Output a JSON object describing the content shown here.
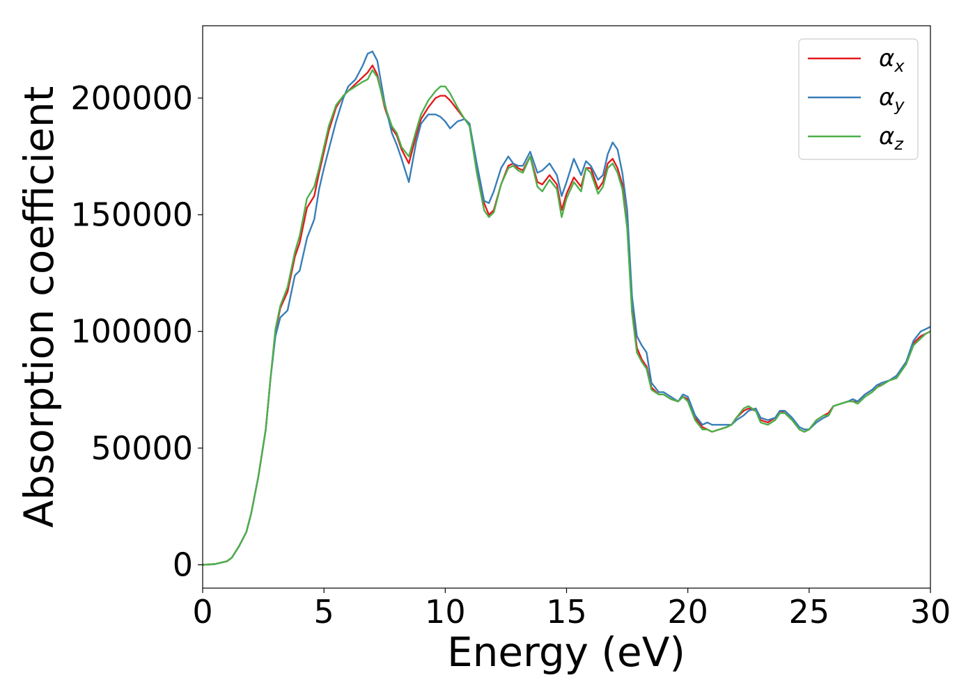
{
  "chart_data": {
    "type": "line",
    "title": "",
    "xlabel": "Energy (eV)",
    "ylabel": "Absorption coefficient",
    "xlim": [
      0,
      30
    ],
    "ylim": [
      -10000,
      231000
    ],
    "xticks": [
      0,
      5,
      10,
      15,
      20,
      25,
      30
    ],
    "yticks": [
      0,
      50000,
      100000,
      150000,
      200000
    ],
    "grid": false,
    "legend_position": "top-right",
    "x": [
      0,
      0.5,
      1,
      1.2,
      1.5,
      1.8,
      2,
      2.3,
      2.6,
      2.8,
      3,
      3.2,
      3.5,
      3.8,
      4,
      4.3,
      4.6,
      4.8,
      5,
      5.2,
      5.5,
      5.8,
      6,
      6.3,
      6.6,
      6.8,
      7,
      7.2,
      7.5,
      7.8,
      8,
      8.2,
      8.5,
      8.8,
      9,
      9.3,
      9.6,
      9.8,
      10,
      10.2,
      10.5,
      10.8,
      11,
      11.3,
      11.6,
      11.8,
      12,
      12.3,
      12.6,
      12.8,
      13,
      13.2,
      13.5,
      13.8,
      14,
      14.3,
      14.6,
      14.8,
      15,
      15.3,
      15.6,
      15.8,
      16,
      16.3,
      16.5,
      16.7,
      16.9,
      17.1,
      17.3,
      17.5,
      17.7,
      17.9,
      18.1,
      18.3,
      18.5,
      18.8,
      19,
      19.3,
      19.6,
      19.8,
      20,
      20.3,
      20.6,
      20.8,
      21,
      21.3,
      21.6,
      21.8,
      22,
      22.3,
      22.5,
      22.8,
      23,
      23.3,
      23.6,
      23.8,
      24,
      24.3,
      24.6,
      24.8,
      25,
      25.3,
      25.6,
      25.8,
      26,
      26.3,
      26.6,
      26.8,
      27,
      27.3,
      27.6,
      27.8,
      28,
      28.3,
      28.6,
      28.8,
      29,
      29.3,
      29.6,
      29.8,
      30
    ],
    "series": [
      {
        "name": "α_x",
        "color": "#e41a1c",
        "values": [
          0,
          300,
          1500,
          3000,
          8000,
          14000,
          22000,
          38000,
          58000,
          80000,
          100000,
          110000,
          117000,
          132000,
          138000,
          153000,
          158000,
          168000,
          177000,
          186000,
          196000,
          201000,
          203000,
          206000,
          209000,
          211000,
          214000,
          210000,
          196000,
          187000,
          184000,
          178000,
          172000,
          184000,
          191000,
          196000,
          200000,
          201000,
          201000,
          199000,
          195000,
          191000,
          189000,
          170000,
          155000,
          150000,
          152000,
          163000,
          171000,
          172000,
          170000,
          169000,
          175000,
          164000,
          163000,
          167000,
          163000,
          152000,
          159000,
          166000,
          162000,
          170000,
          170000,
          161000,
          164000,
          172000,
          174000,
          170000,
          163000,
          145000,
          110000,
          93000,
          88000,
          85000,
          76000,
          73000,
          73000,
          71000,
          70000,
          72000,
          71000,
          63000,
          59000,
          58000,
          57000,
          58000,
          59000,
          60000,
          63000,
          66000,
          67000,
          66000,
          62000,
          61000,
          63000,
          66000,
          65000,
          62000,
          58000,
          57000,
          58000,
          62000,
          64000,
          65000,
          68000,
          69000,
          70000,
          70000,
          70000,
          73000,
          75000,
          77000,
          77000,
          79000,
          80000,
          83000,
          86000,
          95000,
          98000,
          99000,
          100000
        ]
      },
      {
        "name": "α_y",
        "color": "#377eb8",
        "values": [
          0,
          300,
          1500,
          3000,
          8000,
          14000,
          22000,
          38000,
          58000,
          80000,
          98000,
          106000,
          109000,
          124000,
          126000,
          140000,
          148000,
          161000,
          170000,
          178000,
          190000,
          200000,
          205000,
          208000,
          214000,
          219000,
          220000,
          216000,
          198000,
          185000,
          180000,
          174000,
          164000,
          181000,
          189000,
          193000,
          193000,
          192000,
          190000,
          187000,
          190000,
          191000,
          189000,
          172000,
          156000,
          155000,
          160000,
          170000,
          175000,
          172000,
          171000,
          171000,
          177000,
          168000,
          169000,
          172000,
          167000,
          158000,
          164000,
          174000,
          167000,
          173000,
          171000,
          165000,
          167000,
          176000,
          181000,
          178000,
          168000,
          152000,
          115000,
          98000,
          94000,
          91000,
          78000,
          74000,
          74000,
          72000,
          70000,
          73000,
          72000,
          64000,
          60000,
          61000,
          60000,
          60000,
          60000,
          60000,
          62000,
          64000,
          66000,
          67000,
          63000,
          62000,
          63000,
          66000,
          66000,
          63000,
          59000,
          58000,
          58000,
          61000,
          63000,
          64000,
          68000,
          69000,
          70000,
          71000,
          70000,
          73000,
          75000,
          77000,
          78000,
          79000,
          81000,
          84000,
          87000,
          96000,
          100000,
          101000,
          102000
        ]
      },
      {
        "name": "α_z",
        "color": "#4daf4a",
        "values": [
          0,
          300,
          1500,
          3000,
          8000,
          14000,
          22000,
          38000,
          58000,
          80000,
          101000,
          111000,
          119000,
          134000,
          141000,
          157000,
          162000,
          170000,
          179000,
          188000,
          197000,
          201000,
          203000,
          205000,
          207000,
          208000,
          212000,
          209000,
          197000,
          188000,
          185000,
          179000,
          175000,
          186000,
          193000,
          199000,
          203000,
          205000,
          205000,
          202000,
          196000,
          191000,
          188000,
          168000,
          152000,
          149000,
          151000,
          163000,
          170000,
          171000,
          169000,
          168000,
          175000,
          162000,
          160000,
          165000,
          161000,
          149000,
          157000,
          164000,
          160000,
          170000,
          168000,
          159000,
          162000,
          170000,
          172000,
          168000,
          161000,
          144000,
          108000,
          91000,
          87000,
          84000,
          75000,
          73000,
          73000,
          71000,
          70000,
          72000,
          70000,
          62000,
          58000,
          58000,
          57000,
          58000,
          59000,
          60000,
          63000,
          67000,
          68000,
          66000,
          61000,
          60000,
          62000,
          65000,
          65000,
          62000,
          58000,
          57000,
          58000,
          62000,
          64000,
          64000,
          68000,
          69000,
          70000,
          70000,
          69000,
          72000,
          74000,
          76000,
          77000,
          79000,
          80000,
          83000,
          86000,
          94000,
          97000,
          99000,
          100000
        ]
      }
    ]
  }
}
